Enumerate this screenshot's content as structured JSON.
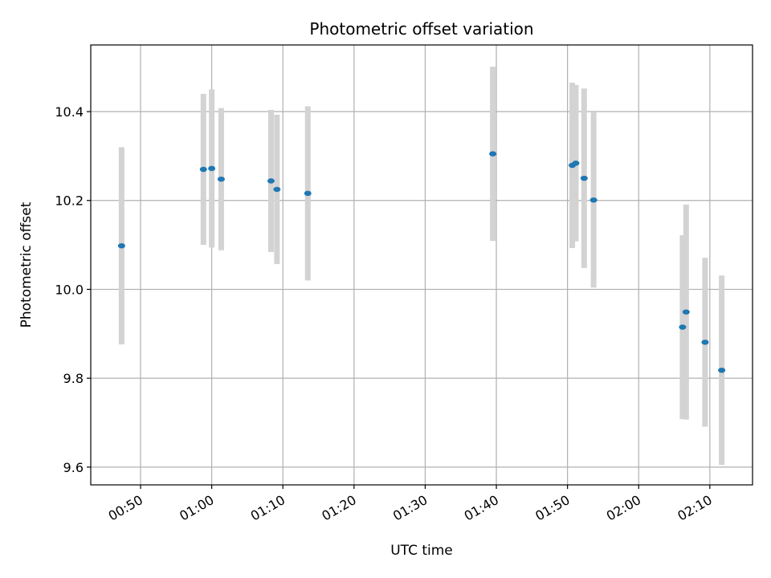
{
  "chart_data": {
    "type": "scatter",
    "title": "Photometric offset variation",
    "xlabel": "UTC time",
    "ylabel": "Photometric offset",
    "xlim": [
      "00:43",
      "02:16"
    ],
    "ylim": [
      9.56,
      10.55
    ],
    "xticks": [
      "00:50",
      "01:00",
      "01:10",
      "01:20",
      "01:30",
      "01:40",
      "01:50",
      "02:00",
      "02:10"
    ],
    "yticks": [
      "9.6",
      "9.8",
      "10.0",
      "10.2",
      "10.4"
    ],
    "grid": true,
    "marker_color": "#1f77b4",
    "errorbar_color": "#d3d3d3",
    "points": [
      {
        "time": "00:47:20",
        "y": 10.098,
        "yerr": 0.222
      },
      {
        "time": "00:58:50",
        "y": 10.27,
        "yerr": 0.17
      },
      {
        "time": "01:00:00",
        "y": 10.272,
        "yerr": 0.178
      },
      {
        "time": "01:01:20",
        "y": 10.248,
        "yerr": 0.16
      },
      {
        "time": "01:08:20",
        "y": 10.244,
        "yerr": 0.16
      },
      {
        "time": "01:09:10",
        "y": 10.225,
        "yerr": 0.168
      },
      {
        "time": "01:13:30",
        "y": 10.216,
        "yerr": 0.196
      },
      {
        "time": "01:39:30",
        "y": 10.305,
        "yerr": 0.196
      },
      {
        "time": "01:50:40",
        "y": 10.279,
        "yerr": 0.186
      },
      {
        "time": "01:51:10",
        "y": 10.284,
        "yerr": 0.176
      },
      {
        "time": "01:52:20",
        "y": 10.25,
        "yerr": 0.202
      },
      {
        "time": "01:53:40",
        "y": 10.201,
        "yerr": 0.197
      },
      {
        "time": "02:06:10",
        "y": 9.915,
        "yerr": 0.207
      },
      {
        "time": "02:06:40",
        "y": 9.949,
        "yerr": 0.242
      },
      {
        "time": "02:09:20",
        "y": 9.881,
        "yerr": 0.19
      },
      {
        "time": "02:11:40",
        "y": 9.818,
        "yerr": 0.213
      }
    ]
  }
}
